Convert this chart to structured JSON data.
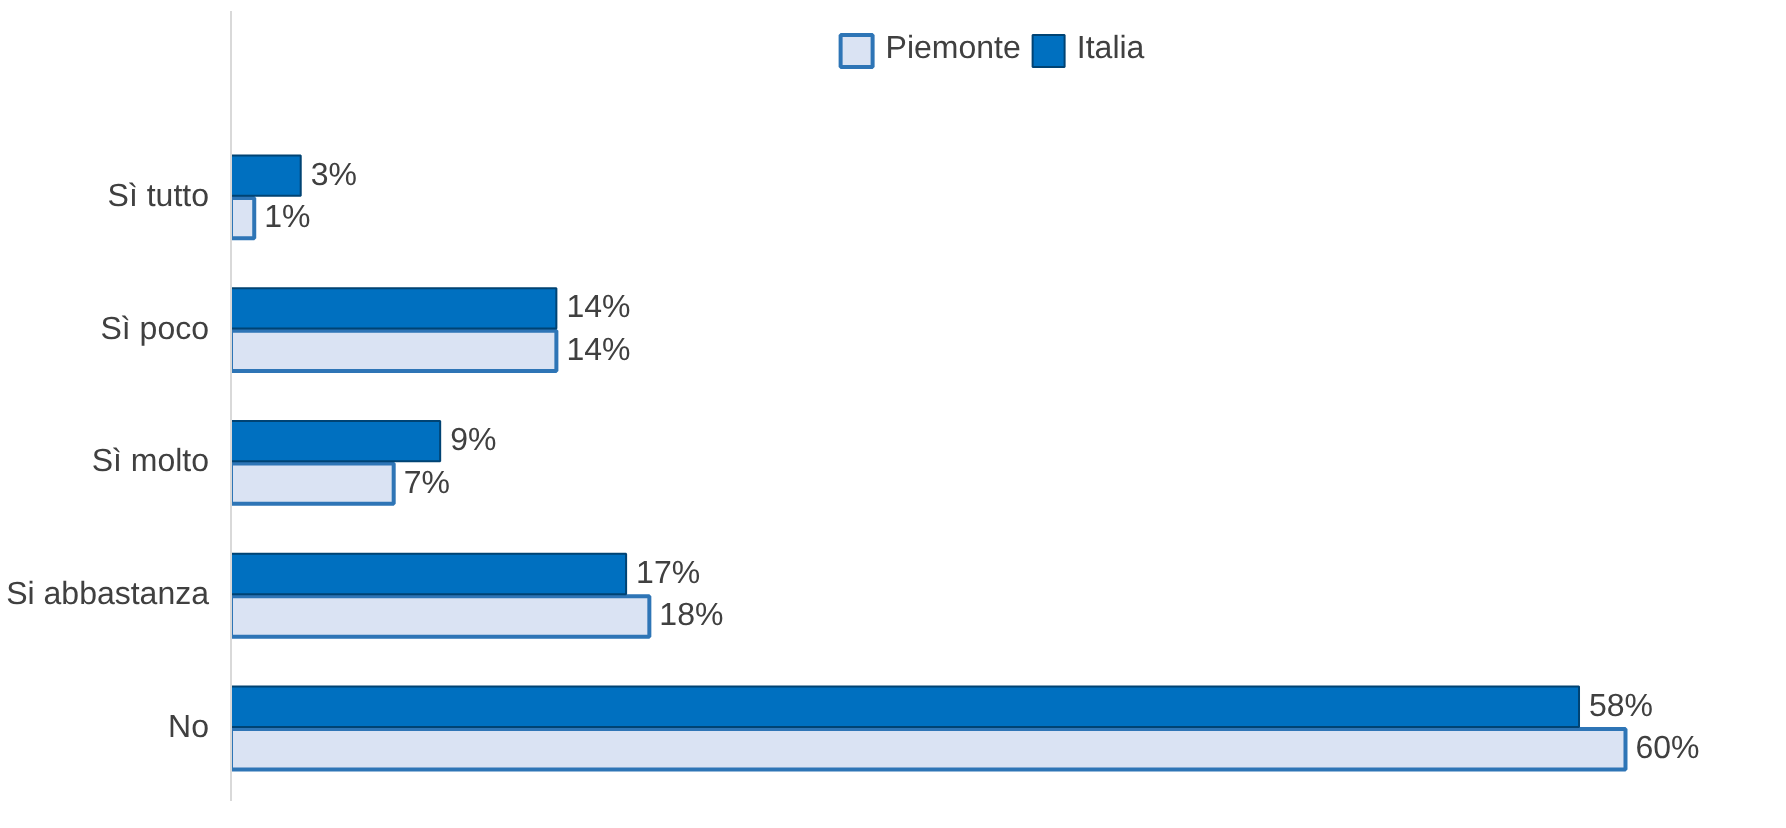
{
  "chart_data": {
    "type": "bar",
    "orientation": "horizontal",
    "categories": [
      "Sì tutto",
      "Sì poco",
      "Sì molto",
      "Si abbastanza",
      "No"
    ],
    "series": [
      {
        "name": "Piemonte",
        "color": "#dae3f3",
        "values": [
          1,
          14,
          7,
          18,
          60
        ],
        "value_labels": [
          "1%",
          "14%",
          "7%",
          "18%",
          "60%"
        ]
      },
      {
        "name": "Italia",
        "color": "#0070c0",
        "values": [
          3,
          14,
          9,
          17,
          58
        ],
        "value_labels": [
          "3%",
          "14%",
          "9%",
          "17%",
          "58%"
        ]
      }
    ],
    "legend": "top",
    "grid": false
  }
}
